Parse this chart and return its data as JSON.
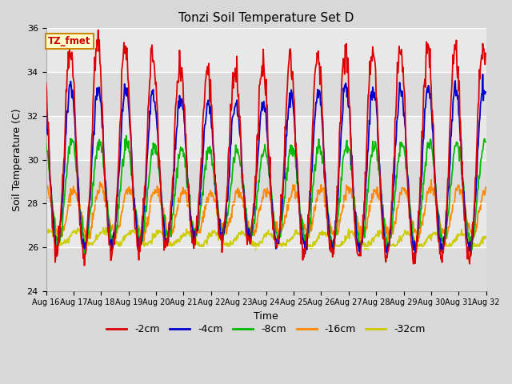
{
  "title": "Tonzi Soil Temperature Set D",
  "xlabel": "Time",
  "ylabel": "Soil Temperature (C)",
  "ylim": [
    24,
    36
  ],
  "yticks": [
    24,
    26,
    28,
    30,
    32,
    34,
    36
  ],
  "annotation_text": "TZ_fmet",
  "annotation_color": "#cc0000",
  "annotation_bg": "#ffffcc",
  "annotation_border": "#cc8800",
  "legend_labels": [
    "-2cm",
    "-4cm",
    "-8cm",
    "-16cm",
    "-32cm"
  ],
  "line_colors": [
    "#dd0000",
    "#0000cc",
    "#00bb00",
    "#ff8800",
    "#cccc00"
  ],
  "n_days": 16,
  "n_points_per_day": 48,
  "start_day": 16,
  "band_colors": [
    "#dcdcdc",
    "#e8e8e8"
  ],
  "fig_bg": "#d8d8d8",
  "font_size_ticks": 8,
  "font_size_label": 9,
  "font_size_title": 11
}
